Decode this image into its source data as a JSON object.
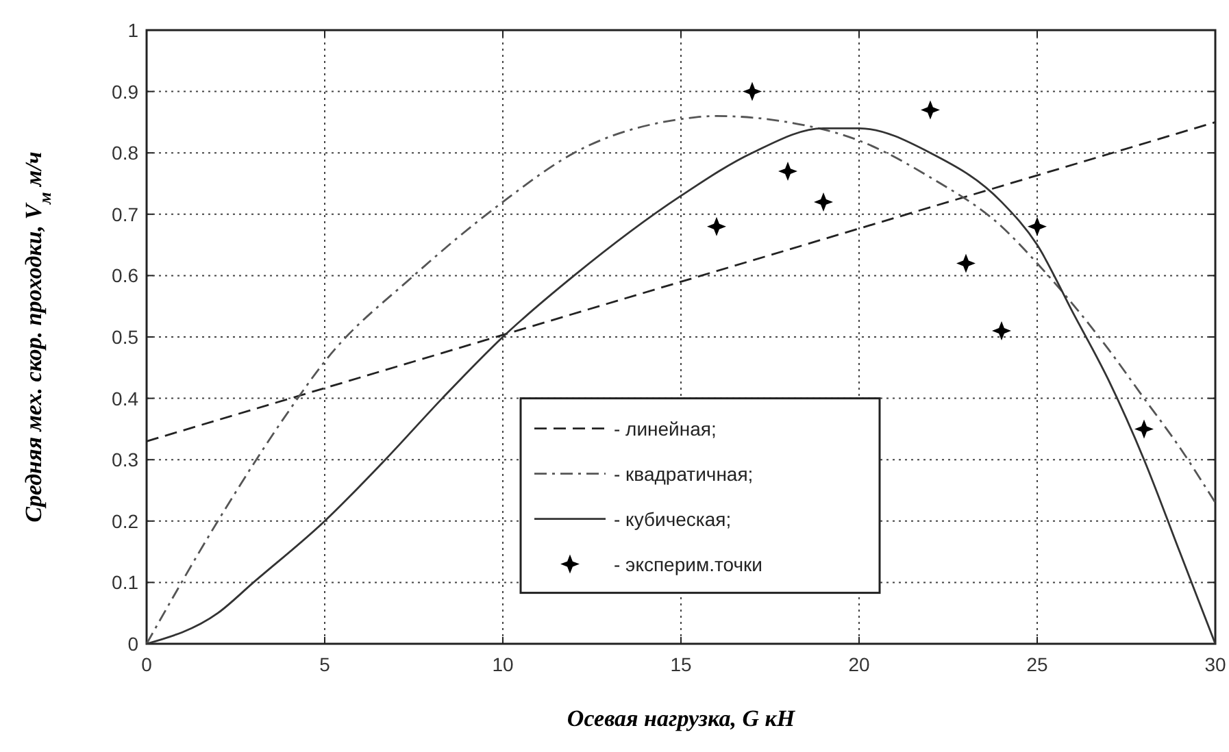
{
  "chart_data": {
    "type": "line",
    "xlabel": "Осевая нагрузка, G кН",
    "ylabel": "Средняя мех. скор. проходки, V$_{м}$ м/ч",
    "xlim": [
      0,
      30
    ],
    "ylim": [
      0,
      1
    ],
    "xticks": [
      0,
      5,
      10,
      15,
      20,
      25,
      30
    ],
    "yticks": [
      0,
      0.1,
      0.2,
      0.3,
      0.4,
      0.5,
      0.6,
      0.7,
      0.8,
      0.9,
      1
    ],
    "grid": true,
    "legend": "bottom",
    "marker": "none",
    "series": [
      {
        "name": "- линейная;",
        "line_style": "dashed",
        "color": "#222222",
        "x": [
          0,
          30
        ],
        "values": [
          0.33,
          0.85
        ]
      },
      {
        "name": "- квадратичная;",
        "line_style": "dashdot",
        "color": "#555555",
        "x": [
          0,
          2,
          4,
          5,
          7.5,
          10,
          12,
          15,
          16,
          18,
          20,
          22,
          24,
          25,
          27,
          28,
          29,
          30
        ],
        "values": [
          0,
          0.2,
          0.38,
          0.46,
          0.6,
          0.72,
          0.8,
          0.855,
          0.86,
          0.85,
          0.82,
          0.76,
          0.68,
          0.62,
          0.48,
          0.4,
          0.32,
          0.23
        ]
      },
      {
        "name": "- кубическая;",
        "line_style": "solid",
        "color": "#333333",
        "x": [
          0,
          2,
          3,
          5,
          6.7,
          8.3,
          10,
          12,
          15,
          17,
          19,
          20,
          22,
          24,
          25,
          26,
          27,
          28,
          29,
          30
        ],
        "values": [
          0,
          0.05,
          0.1,
          0.2,
          0.3,
          0.4,
          0.5,
          0.6,
          0.73,
          0.8,
          0.84,
          0.84,
          0.8,
          0.72,
          0.65,
          0.54,
          0.43,
          0.3,
          0.15,
          0
        ]
      },
      {
        "name": "- эксперим.точки",
        "type": "scatter",
        "marker": "star",
        "color": "#000000",
        "x": [
          16,
          17,
          18,
          19,
          22,
          23,
          24,
          25,
          28
        ],
        "values": [
          0.68,
          0.9,
          0.77,
          0.72,
          0.87,
          0.62,
          0.51,
          0.68,
          0.35
        ]
      }
    ]
  }
}
